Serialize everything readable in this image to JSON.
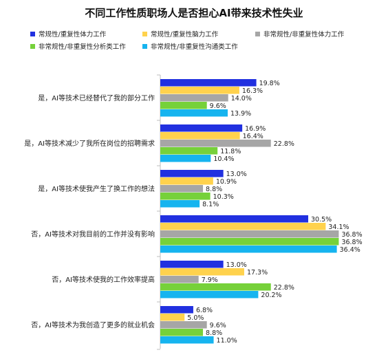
{
  "chart_data": {
    "type": "bar",
    "orientation": "horizontal",
    "title": "不同工作性质职场人是否担心AI带来技术性失业",
    "categories": [
      "是，AI等技术已经替代了我的部分工作",
      "是，AI等技术减少了我所在岗位的招聘需求",
      "是，AI等技术使我产生了换工作的想法",
      "否，AI等技术对我目前的工作并没有影响",
      "否，AI等技术使我的工作效率提高",
      "否，AI等技术为我创造了更多的就业机会"
    ],
    "series": [
      {
        "name": "常规性/重复性体力工作",
        "color": "#2130e0",
        "values": [
          19.8,
          16.9,
          13.0,
          30.5,
          13.0,
          6.8
        ]
      },
      {
        "name": "常规性/重复性脑力工作",
        "color": "#ffd24d",
        "values": [
          16.3,
          16.4,
          10.9,
          34.1,
          17.3,
          5.0
        ]
      },
      {
        "name": "非常规性/非重复性体力工作",
        "color": "#a6a6a6",
        "values": [
          14.0,
          22.8,
          8.8,
          36.8,
          7.9,
          9.6
        ]
      },
      {
        "name": "非常规性/非重复性分析类工作",
        "color": "#76d13a",
        "values": [
          9.6,
          11.8,
          10.3,
          36.8,
          22.8,
          8.8
        ]
      },
      {
        "name": "非常规性/非重复性沟通类工作",
        "color": "#16b4ef",
        "values": [
          13.9,
          10.4,
          8.1,
          36.4,
          20.2,
          11.0
        ]
      }
    ],
    "value_suffix": "%",
    "xlim": [
      0,
      40
    ],
    "legend_position": "top"
  }
}
